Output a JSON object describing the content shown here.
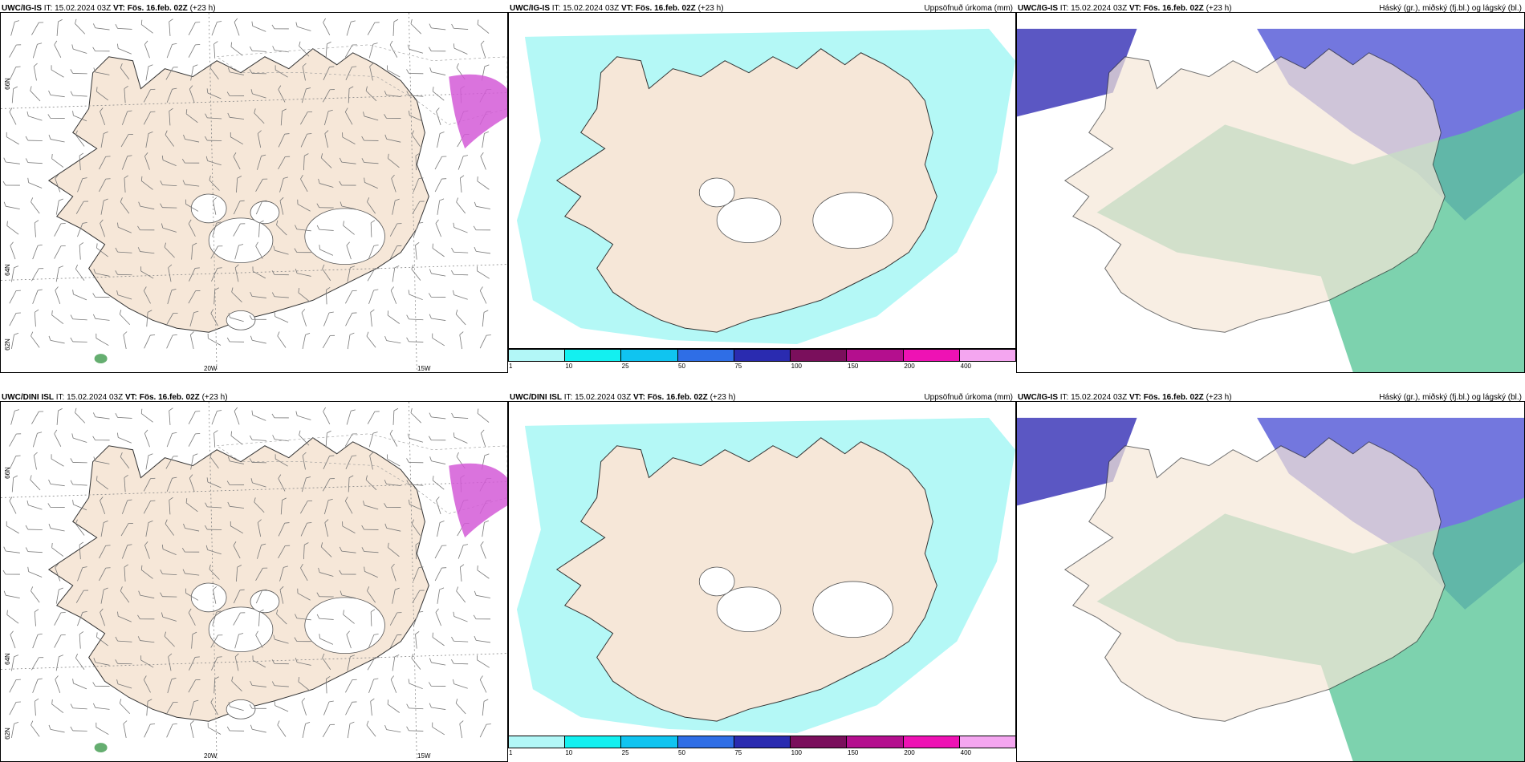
{
  "panels": [
    {
      "model": "UWC/IG-IS",
      "it_label": "IT:",
      "it_value": "15.02.2024 03Z",
      "vt_label": "VT:",
      "vt_value": "Fös. 16.feb. 02Z",
      "lead": "(+23 h)",
      "product": "",
      "lat_labels": [
        "66N",
        "64N",
        "62N"
      ],
      "lon_labels": [
        "20W",
        "15W"
      ],
      "legend": []
    },
    {
      "model": "UWC/IG-IS",
      "it_label": "IT:",
      "it_value": "15.02.2024 03Z",
      "vt_label": "VT:",
      "vt_value": "Fös. 16.feb. 02Z",
      "lead": "(+23 h)",
      "product": "Uppsöfnuð úrkoma (mm)",
      "lat_labels": [],
      "lon_labels": [],
      "legend": [
        "1",
        "10",
        "25",
        "50",
        "75",
        "100",
        "150",
        "200",
        "400"
      ]
    },
    {
      "model": "UWC/IG-IS",
      "it_label": "IT:",
      "it_value": "15.02.2024 03Z",
      "vt_label": "VT:",
      "vt_value": "Fös. 16.feb. 02Z",
      "lead": "(+23 h)",
      "product": "Háský (gr.), miðský (fj.bl.) og lágský (bl.)",
      "lat_labels": [],
      "lon_labels": [],
      "legend": []
    },
    {
      "model": "UWC/DINI ISL",
      "it_label": "IT:",
      "it_value": "15.02.2024 03Z",
      "vt_label": "VT:",
      "vt_value": "Fös. 16.feb. 02Z",
      "lead": "(+23 h)",
      "product": "",
      "lat_labels": [
        "66N",
        "64N",
        "62N"
      ],
      "lon_labels": [
        "20W",
        "15W"
      ],
      "legend": []
    },
    {
      "model": "UWC/DINI ISL",
      "it_label": "IT:",
      "it_value": "15.02.2024 03Z",
      "vt_label": "VT:",
      "vt_value": "Fös. 16.feb. 02Z",
      "lead": "(+23 h)",
      "product": "Uppsöfnuð úrkoma (mm)",
      "lat_labels": [],
      "lon_labels": [],
      "legend": [
        "1",
        "10",
        "25",
        "50",
        "75",
        "100",
        "150",
        "200",
        "400"
      ]
    },
    {
      "model": "UWC/IG-IS",
      "it_label": "IT:",
      "it_value": "15.02.2024 03Z",
      "vt_label": "VT:",
      "vt_value": "Fös. 16.feb. 02Z",
      "lead": "(+23 h)",
      "product": "Háský (gr.), miðský (fj.bl.) og lágský (bl.)",
      "lat_labels": [],
      "lon_labels": [],
      "legend": []
    }
  ],
  "legend_colors": [
    "#b2f7f7",
    "#13f0f0",
    "#10c4f0",
    "#2f6ee6",
    "#2a2bb0",
    "#7a0f5c",
    "#b40f8e",
    "#ee12b4",
    "#f4a6f0"
  ],
  "colors": {
    "land": "#f6e7d8",
    "precip_light": "#b4f8f6",
    "snow_cover": "#ffffff",
    "ice_hatch": "#999999",
    "high_cloud": "#5cc79a",
    "mid_cloud": "#5b5fd8",
    "low_cloud": "#3e3ab8",
    "pressure_magenta": "#d35ad7",
    "precip_green": "#3f9a4c",
    "wind_barb": "#777777"
  }
}
